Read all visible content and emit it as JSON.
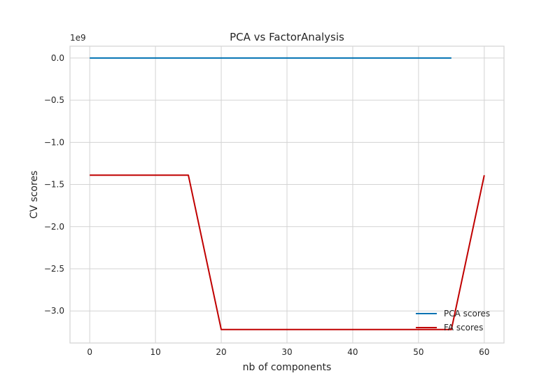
{
  "chart_data": {
    "type": "line",
    "title": "PCA vs FactorAnalysis",
    "xlabel": "nb of components",
    "ylabel": "CV scores",
    "y_offset_text": "1e9",
    "xlim": [
      -3,
      63
    ],
    "ylim": [
      -3.38,
      0.14
    ],
    "xticks": [
      0,
      10,
      20,
      30,
      40,
      50,
      60
    ],
    "xtick_labels": [
      "0",
      "10",
      "20",
      "30",
      "40",
      "50",
      "60"
    ],
    "yticks": [
      0.0,
      -0.5,
      -1.0,
      -1.5,
      -2.0,
      -2.5,
      -3.0
    ],
    "ytick_labels": [
      "0.0",
      "−0.5",
      "−1.0",
      "−1.5",
      "−2.0",
      "−2.5",
      "−3.0"
    ],
    "grid": true,
    "legend_position": "lower-right",
    "series": [
      {
        "name": "PCA scores",
        "color": "#0072b2",
        "x": [
          0,
          5,
          10,
          15,
          20,
          25,
          30,
          35,
          40,
          45,
          50,
          55
        ],
        "y": [
          0,
          0,
          0,
          0,
          0,
          0,
          0,
          0,
          0,
          0,
          0,
          0
        ]
      },
      {
        "name": "FA scores",
        "color": "#c00000",
        "x": [
          0,
          5,
          10,
          15,
          20,
          25,
          30,
          35,
          40,
          45,
          50,
          55,
          60
        ],
        "y": [
          -1.39,
          -1.39,
          -1.39,
          -1.39,
          -3.22,
          -3.22,
          -3.22,
          -3.22,
          -3.22,
          -3.22,
          -3.22,
          -3.22,
          -1.39
        ]
      }
    ]
  }
}
